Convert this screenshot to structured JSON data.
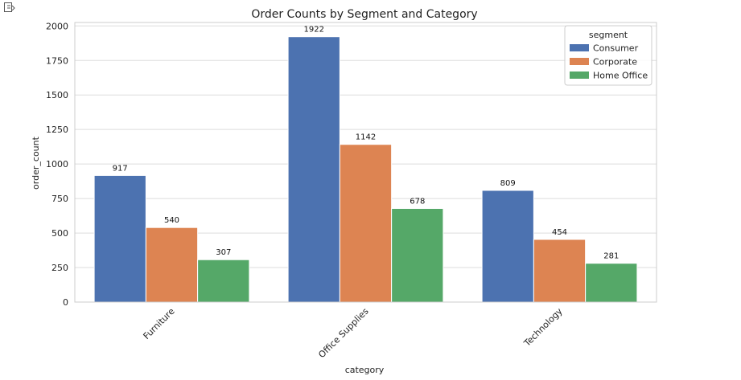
{
  "chart_data": {
    "type": "bar",
    "title": "Order Counts by Segment and Category",
    "xlabel": "category",
    "ylabel": "order_count",
    "categories": [
      "Furniture",
      "Office Supplies",
      "Technology"
    ],
    "series": [
      {
        "name": "Consumer",
        "values": [
          917,
          1922,
          809
        ],
        "color": "#4c72b0"
      },
      {
        "name": "Corporate",
        "values": [
          540,
          1142,
          454
        ],
        "color": "#dd8452"
      },
      {
        "name": "Home Office",
        "values": [
          307,
          678,
          281
        ],
        "color": "#55a868"
      }
    ],
    "ylim": [
      0,
      2025
    ],
    "yticks": [
      0,
      250,
      500,
      750,
      1000,
      1250,
      1500,
      1750,
      2000
    ],
    "grid": true,
    "legend": {
      "title": "segment",
      "placement": "top-right"
    }
  },
  "icons": {
    "output_toggle": "collapse-output-icon"
  }
}
